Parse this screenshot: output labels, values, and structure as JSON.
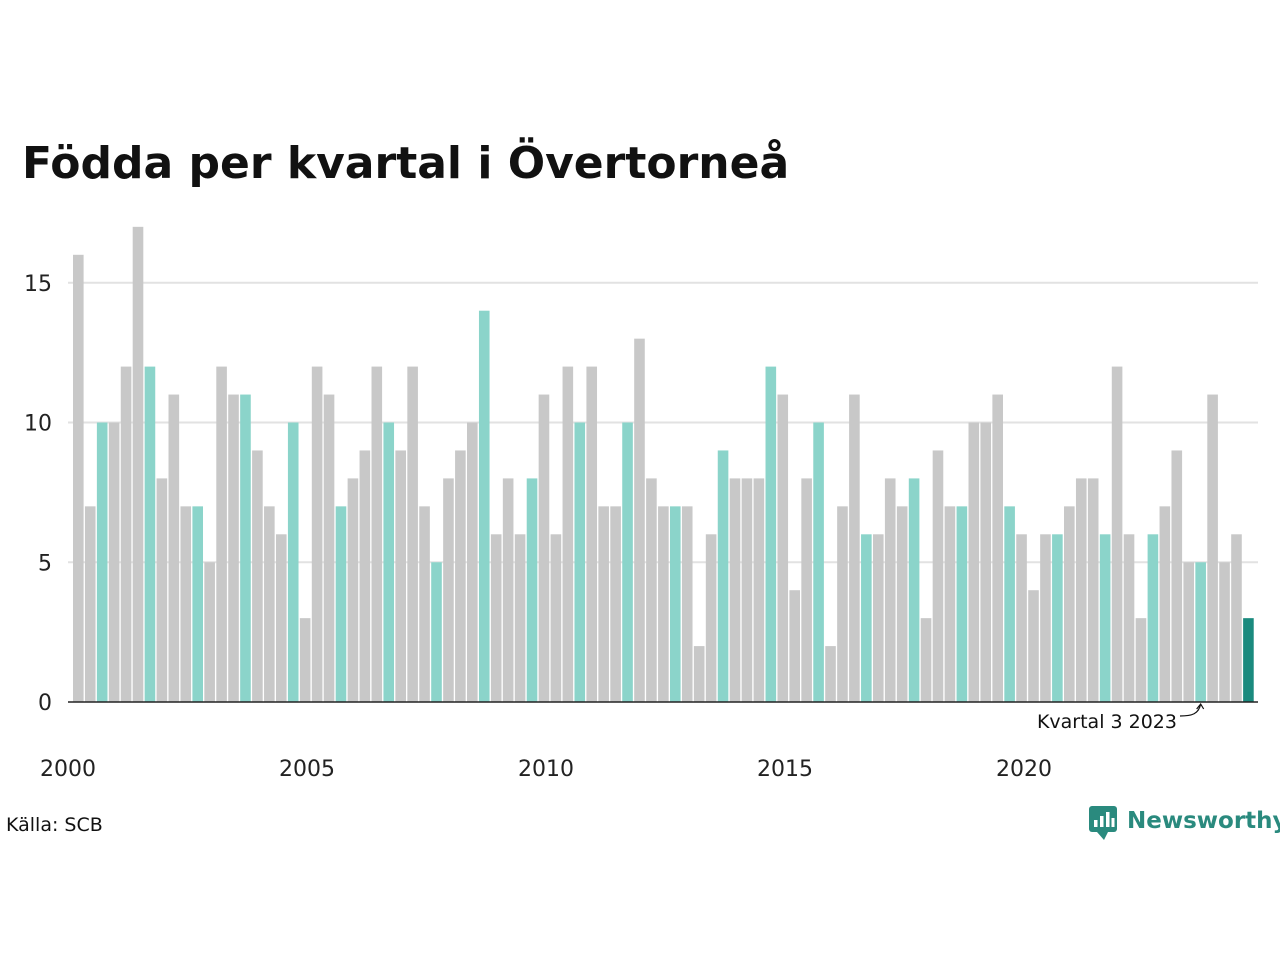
{
  "title": "Födda per kvartal i Övertorneå",
  "source": "Källa: SCB",
  "brand": "Newsworthy",
  "annotation": "Kvartal 3 2023",
  "colors": {
    "q1": "#8bd4ca",
    "other": "#c8c8c8",
    "highlight": "#1a8a7e",
    "grid": "#e2e2e2",
    "axis": "#222222",
    "brand": "#2a8a7e"
  },
  "chart_data": {
    "type": "bar",
    "title": "Födda per kvartal i Övertorneå",
    "xlabel": "",
    "ylabel": "",
    "ylim": [
      0,
      17
    ],
    "yticks": [
      0,
      5,
      10,
      15
    ],
    "xtick_labels": [
      "2000",
      "2005",
      "2010",
      "2015",
      "2020"
    ],
    "grid": true,
    "start_year": 2000,
    "values": [
      16,
      7,
      10,
      10,
      12,
      17,
      12,
      8,
      11,
      7,
      7,
      5,
      12,
      11,
      11,
      9,
      7,
      6,
      10,
      3,
      12,
      11,
      7,
      8,
      9,
      12,
      10,
      9,
      12,
      7,
      5,
      8,
      9,
      10,
      14,
      6,
      8,
      6,
      8,
      11,
      6,
      12,
      10,
      12,
      7,
      7,
      10,
      13,
      8,
      7,
      7,
      7,
      2,
      6,
      9,
      8,
      8,
      8,
      12,
      11,
      4,
      8,
      10,
      2,
      7,
      11,
      6,
      6,
      8,
      7,
      8,
      3,
      9,
      7,
      7,
      10,
      10,
      11,
      7,
      6,
      4,
      6,
      6,
      7,
      8,
      8,
      6,
      12,
      6,
      3,
      6,
      7,
      9,
      5,
      5,
      11,
      5,
      6,
      3
    ],
    "highlight_index": 98,
    "annotated_index": 94
  }
}
